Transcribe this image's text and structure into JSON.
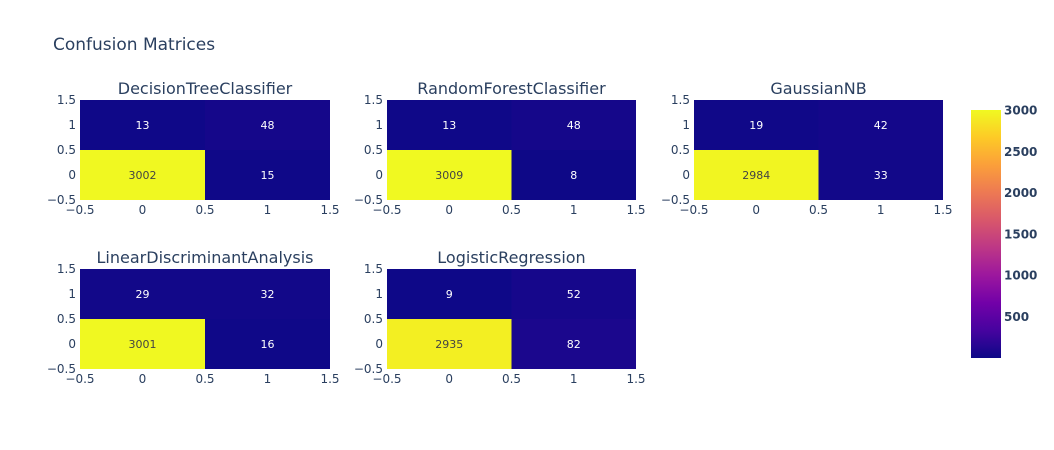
{
  "chart_data": {
    "type": "heatmap",
    "title": "Confusion Matrices",
    "x_ticks": [
      "−0.5",
      "0",
      "0.5",
      "1",
      "1.5"
    ],
    "y_ticks": [
      "−0.5",
      "0",
      "0.5",
      "1",
      "1.5"
    ],
    "xlim": [
      -0.5,
      1.5
    ],
    "ylim": [
      -0.5,
      1.5
    ],
    "colorscale": [
      "#0d0887",
      "#46039f",
      "#7201a8",
      "#9c179e",
      "#bd3786",
      "#d8576b",
      "#ed7953",
      "#fb9f3a",
      "#fdca26",
      "#f0f921"
    ],
    "zmin": 2,
    "zmax": 3009,
    "colorbar": {
      "ticks": [
        500,
        1000,
        1500,
        2000,
        2500,
        3000
      ],
      "tick_labels": [
        "500",
        "1000",
        "1500",
        "2000",
        "2500",
        "3000"
      ]
    },
    "subplots": [
      {
        "name": "DecisionTreeClassifier",
        "z": [
          [
            3002,
            15
          ],
          [
            13,
            48
          ]
        ]
      },
      {
        "name": "RandomForestClassifier",
        "z": [
          [
            3009,
            8
          ],
          [
            13,
            48
          ]
        ]
      },
      {
        "name": "GaussianNB",
        "z": [
          [
            2984,
            33
          ],
          [
            19,
            42
          ]
        ]
      },
      {
        "name": "LinearDiscriminantAnalysis",
        "z": [
          [
            3001,
            16
          ],
          [
            29,
            32
          ]
        ]
      },
      {
        "name": "LogisticRegression",
        "z": [
          [
            2935,
            82
          ],
          [
            9,
            52
          ]
        ]
      }
    ]
  }
}
